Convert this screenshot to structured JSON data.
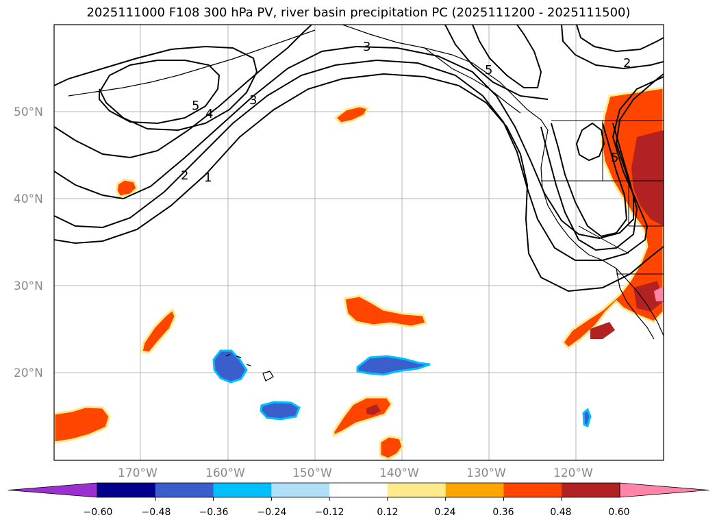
{
  "title": "2025111000 F108 300 hPa PV, river basin precipitation PC (2025111200 - 2025111500)",
  "lat_labels": [
    "50°N",
    "40°N",
    "30°N",
    "20°N"
  ],
  "lon_labels": [
    "170°W",
    "160°W",
    "150°W",
    "140°W",
    "130°W",
    "120°W"
  ],
  "colorbar": {
    "ticks": [
      "−0.60",
      "−0.48",
      "−0.36",
      "−0.24",
      "−0.12",
      "0.12",
      "0.24",
      "0.36",
      "0.48",
      "0.60"
    ],
    "colors": [
      "#9b30d0",
      "#00008b",
      "#3a5fcd",
      "#00bfff",
      "#b0e0f8",
      "#ffffff",
      "#ffeb8c",
      "#ffa500",
      "#ff4500",
      "#b22222",
      "#ff85a8"
    ]
  },
  "contour_labels": [
    "3",
    "5",
    "4",
    "3",
    "2",
    "1",
    "2",
    "5",
    "5"
  ],
  "fill_colors": {
    "positive_low": "#ffeb8c",
    "positive_mid": "#ffa500",
    "positive": "#ff4500",
    "positive_high": "#b22222",
    "positive_max": "#ff85a8",
    "negative_low": "#00bfff",
    "negative": "#3a5fcd"
  }
}
